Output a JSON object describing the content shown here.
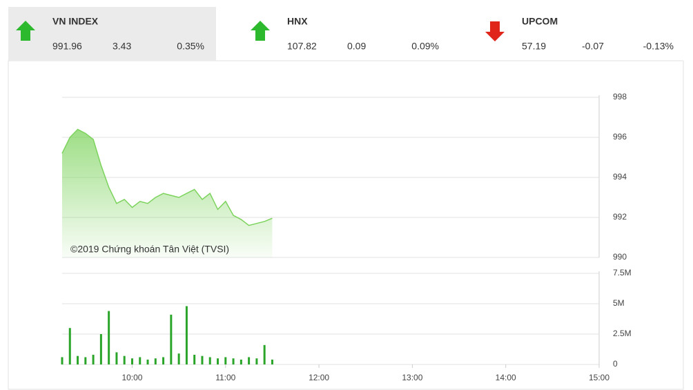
{
  "indices": [
    {
      "name": "VN INDEX",
      "value": "991.96",
      "change": "3.43",
      "percent": "0.35%",
      "trend": "up",
      "color": "#2db92d",
      "selected": true
    },
    {
      "name": "HNX",
      "value": "107.82",
      "change": "0.09",
      "percent": "0.09%",
      "trend": "up",
      "color": "#2db92d",
      "selected": false
    },
    {
      "name": "UPCOM",
      "value": "57.19",
      "change": "-0.07",
      "percent": "-0.13%",
      "trend": "down",
      "color": "#e0261b",
      "selected": false
    }
  ],
  "chart_data": [
    {
      "type": "line",
      "annotation": "©2019 Chứng khoán Tân Việt (TVSI)",
      "color": "#7cd35c",
      "x": [
        "09:15",
        "09:20",
        "09:25",
        "09:30",
        "09:35",
        "09:40",
        "09:45",
        "09:50",
        "09:55",
        "10:00",
        "10:05",
        "10:10",
        "10:15",
        "10:20",
        "10:25",
        "10:30",
        "10:35",
        "10:40",
        "10:45",
        "10:50",
        "10:55",
        "11:00",
        "11:05",
        "11:10",
        "11:15",
        "11:20",
        "11:25",
        "11:30"
      ],
      "values": [
        995.2,
        996.0,
        996.4,
        996.2,
        995.9,
        994.6,
        993.5,
        992.7,
        992.9,
        992.5,
        992.8,
        992.7,
        993.0,
        993.2,
        993.1,
        993.0,
        993.2,
        993.4,
        992.9,
        993.2,
        992.4,
        992.8,
        992.1,
        991.9,
        991.6,
        991.7,
        991.8,
        991.96
      ],
      "xlim": [
        "09:15",
        "15:00"
      ],
      "ylim": [
        990,
        998
      ],
      "yticks": [
        990,
        992,
        994,
        996,
        998
      ],
      "grid": true
    },
    {
      "type": "bar",
      "color": "#2aa52a",
      "x": [
        "09:15",
        "09:20",
        "09:25",
        "09:30",
        "09:35",
        "09:40",
        "09:45",
        "09:50",
        "09:55",
        "10:00",
        "10:05",
        "10:10",
        "10:15",
        "10:20",
        "10:25",
        "10:30",
        "10:35",
        "10:40",
        "10:45",
        "10:50",
        "10:55",
        "11:00",
        "11:05",
        "11:10",
        "11:15",
        "11:20",
        "11:25",
        "11:30"
      ],
      "values": [
        600000,
        3000000,
        700000,
        600000,
        800000,
        2500000,
        4400000,
        1000000,
        700000,
        500000,
        600000,
        400000,
        500000,
        600000,
        4100000,
        900000,
        4800000,
        800000,
        700000,
        600000,
        500000,
        600000,
        500000,
        400000,
        600000,
        500000,
        1600000,
        400000
      ],
      "xlim": [
        "09:15",
        "15:00"
      ],
      "ylim": [
        0,
        7500000
      ],
      "yticks": [
        0,
        {
          "value": 2500000,
          "label": "2.5M"
        },
        {
          "value": 5000000,
          "label": "5M"
        },
        {
          "value": 7500000,
          "label": "7.5M"
        }
      ],
      "xticks": [
        "10:00",
        "11:00",
        "12:00",
        "13:00",
        "14:00",
        "15:00"
      ],
      "grid": true
    }
  ]
}
